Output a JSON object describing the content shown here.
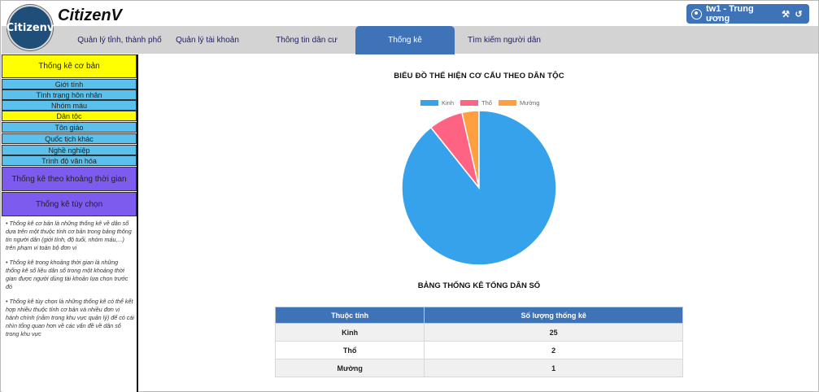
{
  "header": {
    "logo_text": "Citizenv",
    "brand": "CitizenV",
    "user": {
      "name": "tw1 - Trung ương",
      "icons": [
        "user-icon",
        "tools-icon",
        "logout-icon"
      ]
    }
  },
  "nav": {
    "items": [
      {
        "label": "Quản lý tỉnh, thành phố"
      },
      {
        "label": "Quản lý tài khoản"
      },
      {
        "label": "Thông tin dân cư"
      },
      {
        "label": "Thống kê",
        "active": true
      },
      {
        "label": "Tìm kiếm người dân"
      }
    ]
  },
  "sidebar": {
    "basic": "Thống kê cơ bản",
    "sub_items": [
      {
        "label": "Giới tính"
      },
      {
        "label": "Tình trạng hôn nhân"
      },
      {
        "label": "Nhóm máu"
      },
      {
        "label": "Dân tộc",
        "active": true
      },
      {
        "label": "Tôn giáo"
      },
      {
        "label": "Quốc tịch khác"
      },
      {
        "label": "Nghề nghiệp"
      },
      {
        "label": "Trình độ văn hóa"
      }
    ],
    "period": "Thống kê theo khoảng thời gian",
    "custom": "Thống kê tùy chọn",
    "notes": [
      "• Thống kê cơ bản là những thống kê về dân số dựa trên một thuộc tính cơ bản trong bảng thông tin người dân (giới tính, độ tuổi, nhóm máu,...) trên phạm vi toàn bộ đơn vị",
      "• Thống kê trong khoảng thời gian là những thống kê số liệu dân số trong một khoảng thời gian được người dùng tài khoản lựa chọn trước đó",
      "• Thống kê tùy chọn là những thống kê có thể kết hợp nhiều thuộc tính cơ bản và nhiều đơn vị hành chính (nằm trong khu vực quản lý) để có cái nhìn tổng quan hơn về các vấn đề về dân số trong khu vực"
    ]
  },
  "chart_data": {
    "type": "pie",
    "title": "BIỂU ĐỒ THỂ HIỆN CƠ CẤU THEO DÂN TỘC",
    "categories": [
      "Kinh",
      "Thổ",
      "Mường"
    ],
    "values": [
      25,
      2,
      1
    ],
    "colors": [
      "#36a2eb",
      "#ff6384",
      "#ff9f40"
    ],
    "legend": "top"
  },
  "table": {
    "title": "BẢNG THỐNG KÊ TỔNG DÂN SỐ",
    "headers": [
      "Thuộc tính",
      "Số lượng thống kê"
    ],
    "rows": [
      {
        "name": "Kinh",
        "count": "25"
      },
      {
        "name": "Thổ",
        "count": "2"
      },
      {
        "name": "Mường",
        "count": "1"
      }
    ]
  }
}
